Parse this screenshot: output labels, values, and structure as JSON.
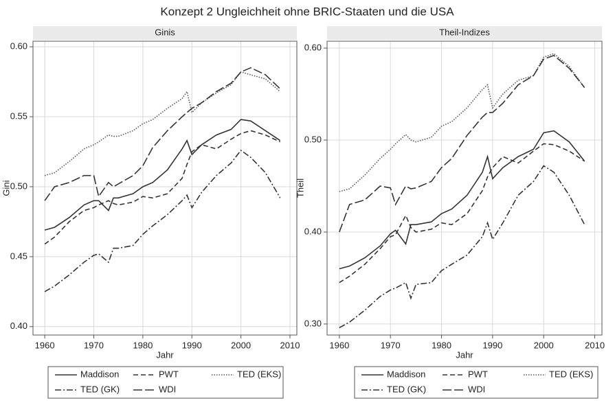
{
  "title": "Konzept 2 Ungleichheit ohne BRIC-Staaten und die USA",
  "chart_data": [
    {
      "type": "line",
      "title": "Ginis",
      "xlabel": "Jahr",
      "ylabel": "Gini",
      "x": [
        1960,
        1962,
        1965,
        1968,
        1970,
        1971,
        1973,
        1974,
        1975,
        1978,
        1980,
        1982,
        1985,
        1988,
        1989,
        1990,
        1992,
        1995,
        1998,
        2000,
        2002,
        2005,
        2008
      ],
      "xlim": [
        1957.6,
        2011.4
      ],
      "xticks": [
        1960,
        1970,
        1980,
        1990,
        2000,
        2010
      ],
      "ylim": [
        0.394,
        0.604
      ],
      "yticks": [
        {
          "value": 0.4,
          "label": "0.40"
        },
        0.45,
        {
          "value": 0.5,
          "label": "0.50"
        },
        0.55,
        {
          "value": 0.6,
          "label": "0.60"
        }
      ],
      "grid": true,
      "series": [
        {
          "name": "Maddison",
          "color": "#333333",
          "style": "solid",
          "values": [
            0.469,
            0.471,
            0.478,
            0.487,
            0.49,
            0.49,
            0.483,
            0.492,
            0.492,
            0.495,
            0.5,
            0.503,
            0.512,
            0.527,
            0.533,
            0.523,
            0.53,
            0.537,
            0.541,
            0.548,
            0.547,
            0.54,
            0.533
          ]
        },
        {
          "name": "PWT",
          "color": "#333333",
          "style": "dash",
          "values": [
            0.459,
            0.464,
            0.475,
            0.483,
            0.485,
            0.487,
            0.49,
            0.488,
            0.487,
            0.489,
            0.493,
            0.492,
            0.495,
            0.506,
            0.516,
            0.525,
            0.53,
            0.527,
            0.534,
            0.538,
            0.54,
            0.537,
            0.532
          ]
        },
        {
          "name": "TED (EKS)",
          "color": "#555555",
          "style": "dot",
          "values": [
            0.508,
            0.51,
            0.518,
            0.527,
            0.53,
            0.532,
            0.537,
            0.536,
            0.536,
            0.54,
            0.545,
            0.548,
            0.556,
            0.563,
            0.568,
            0.553,
            0.56,
            0.567,
            0.573,
            0.582,
            0.58,
            0.577,
            0.568
          ]
        },
        {
          "name": "TED (GK)",
          "color": "#333333",
          "style": "dashdot",
          "values": [
            0.425,
            0.429,
            0.437,
            0.446,
            0.451,
            0.452,
            0.446,
            0.456,
            0.456,
            0.458,
            0.466,
            0.472,
            0.48,
            0.49,
            0.494,
            0.485,
            0.496,
            0.508,
            0.517,
            0.526,
            0.521,
            0.51,
            0.492
          ]
        },
        {
          "name": "WDI",
          "color": "#333333",
          "style": "longdash",
          "values": [
            0.49,
            0.5,
            0.503,
            0.508,
            0.508,
            0.493,
            0.503,
            0.5,
            0.502,
            0.508,
            0.515,
            0.528,
            0.54,
            0.55,
            0.553,
            0.556,
            0.56,
            0.568,
            0.574,
            0.582,
            0.585,
            0.58,
            0.57
          ]
        }
      ]
    },
    {
      "type": "line",
      "title": "Theil-Indizes",
      "xlabel": "Jahr",
      "ylabel": "Theil",
      "x": [
        1960,
        1962,
        1965,
        1968,
        1970,
        1971,
        1973,
        1974,
        1975,
        1978,
        1980,
        1982,
        1985,
        1988,
        1989,
        1990,
        1992,
        1995,
        1998,
        2000,
        2002,
        2005,
        2008
      ],
      "xlim": [
        1957.6,
        2011.4
      ],
      "xticks": [
        1960,
        1970,
        1980,
        1990,
        2000,
        2010
      ],
      "ylim": [
        0.288,
        0.6075
      ],
      "yticks": [
        {
          "value": 0.3,
          "label": "0.30"
        },
        {
          "value": 0.4,
          "label": "0.40"
        },
        {
          "value": 0.5,
          "label": "0.50"
        },
        {
          "value": 0.6,
          "label": "0.60"
        }
      ],
      "grid": true,
      "series": [
        {
          "name": "Maddison",
          "color": "#333333",
          "style": "solid",
          "values": [
            0.36,
            0.363,
            0.372,
            0.385,
            0.398,
            0.402,
            0.387,
            0.408,
            0.408,
            0.411,
            0.42,
            0.425,
            0.44,
            0.465,
            0.482,
            0.458,
            0.47,
            0.482,
            0.49,
            0.508,
            0.51,
            0.498,
            0.477
          ]
        },
        {
          "name": "PWT",
          "color": "#333333",
          "style": "dash",
          "values": [
            0.345,
            0.352,
            0.365,
            0.382,
            0.395,
            0.397,
            0.418,
            0.405,
            0.4,
            0.403,
            0.41,
            0.408,
            0.42,
            0.445,
            0.46,
            0.47,
            0.482,
            0.475,
            0.488,
            0.496,
            0.495,
            0.488,
            0.477
          ]
        },
        {
          "name": "TED (EKS)",
          "color": "#555555",
          "style": "dot",
          "values": [
            0.444,
            0.447,
            0.462,
            0.48,
            0.49,
            0.496,
            0.506,
            0.5,
            0.498,
            0.503,
            0.515,
            0.52,
            0.535,
            0.555,
            0.56,
            0.535,
            0.55,
            0.565,
            0.57,
            0.59,
            0.594,
            0.58,
            0.557
          ]
        },
        {
          "name": "TED (GK)",
          "color": "#333333",
          "style": "dashdot",
          "values": [
            0.296,
            0.302,
            0.315,
            0.33,
            0.337,
            0.339,
            0.345,
            0.328,
            0.343,
            0.345,
            0.358,
            0.365,
            0.375,
            0.395,
            0.41,
            0.392,
            0.41,
            0.44,
            0.455,
            0.472,
            0.465,
            0.44,
            0.408
          ]
        },
        {
          "name": "WDI",
          "color": "#333333",
          "style": "longdash",
          "values": [
            0.4,
            0.43,
            0.435,
            0.45,
            0.448,
            0.43,
            0.45,
            0.447,
            0.448,
            0.455,
            0.47,
            0.48,
            0.505,
            0.525,
            0.53,
            0.53,
            0.54,
            0.56,
            0.57,
            0.588,
            0.592,
            0.578,
            0.557
          ]
        }
      ]
    }
  ]
}
